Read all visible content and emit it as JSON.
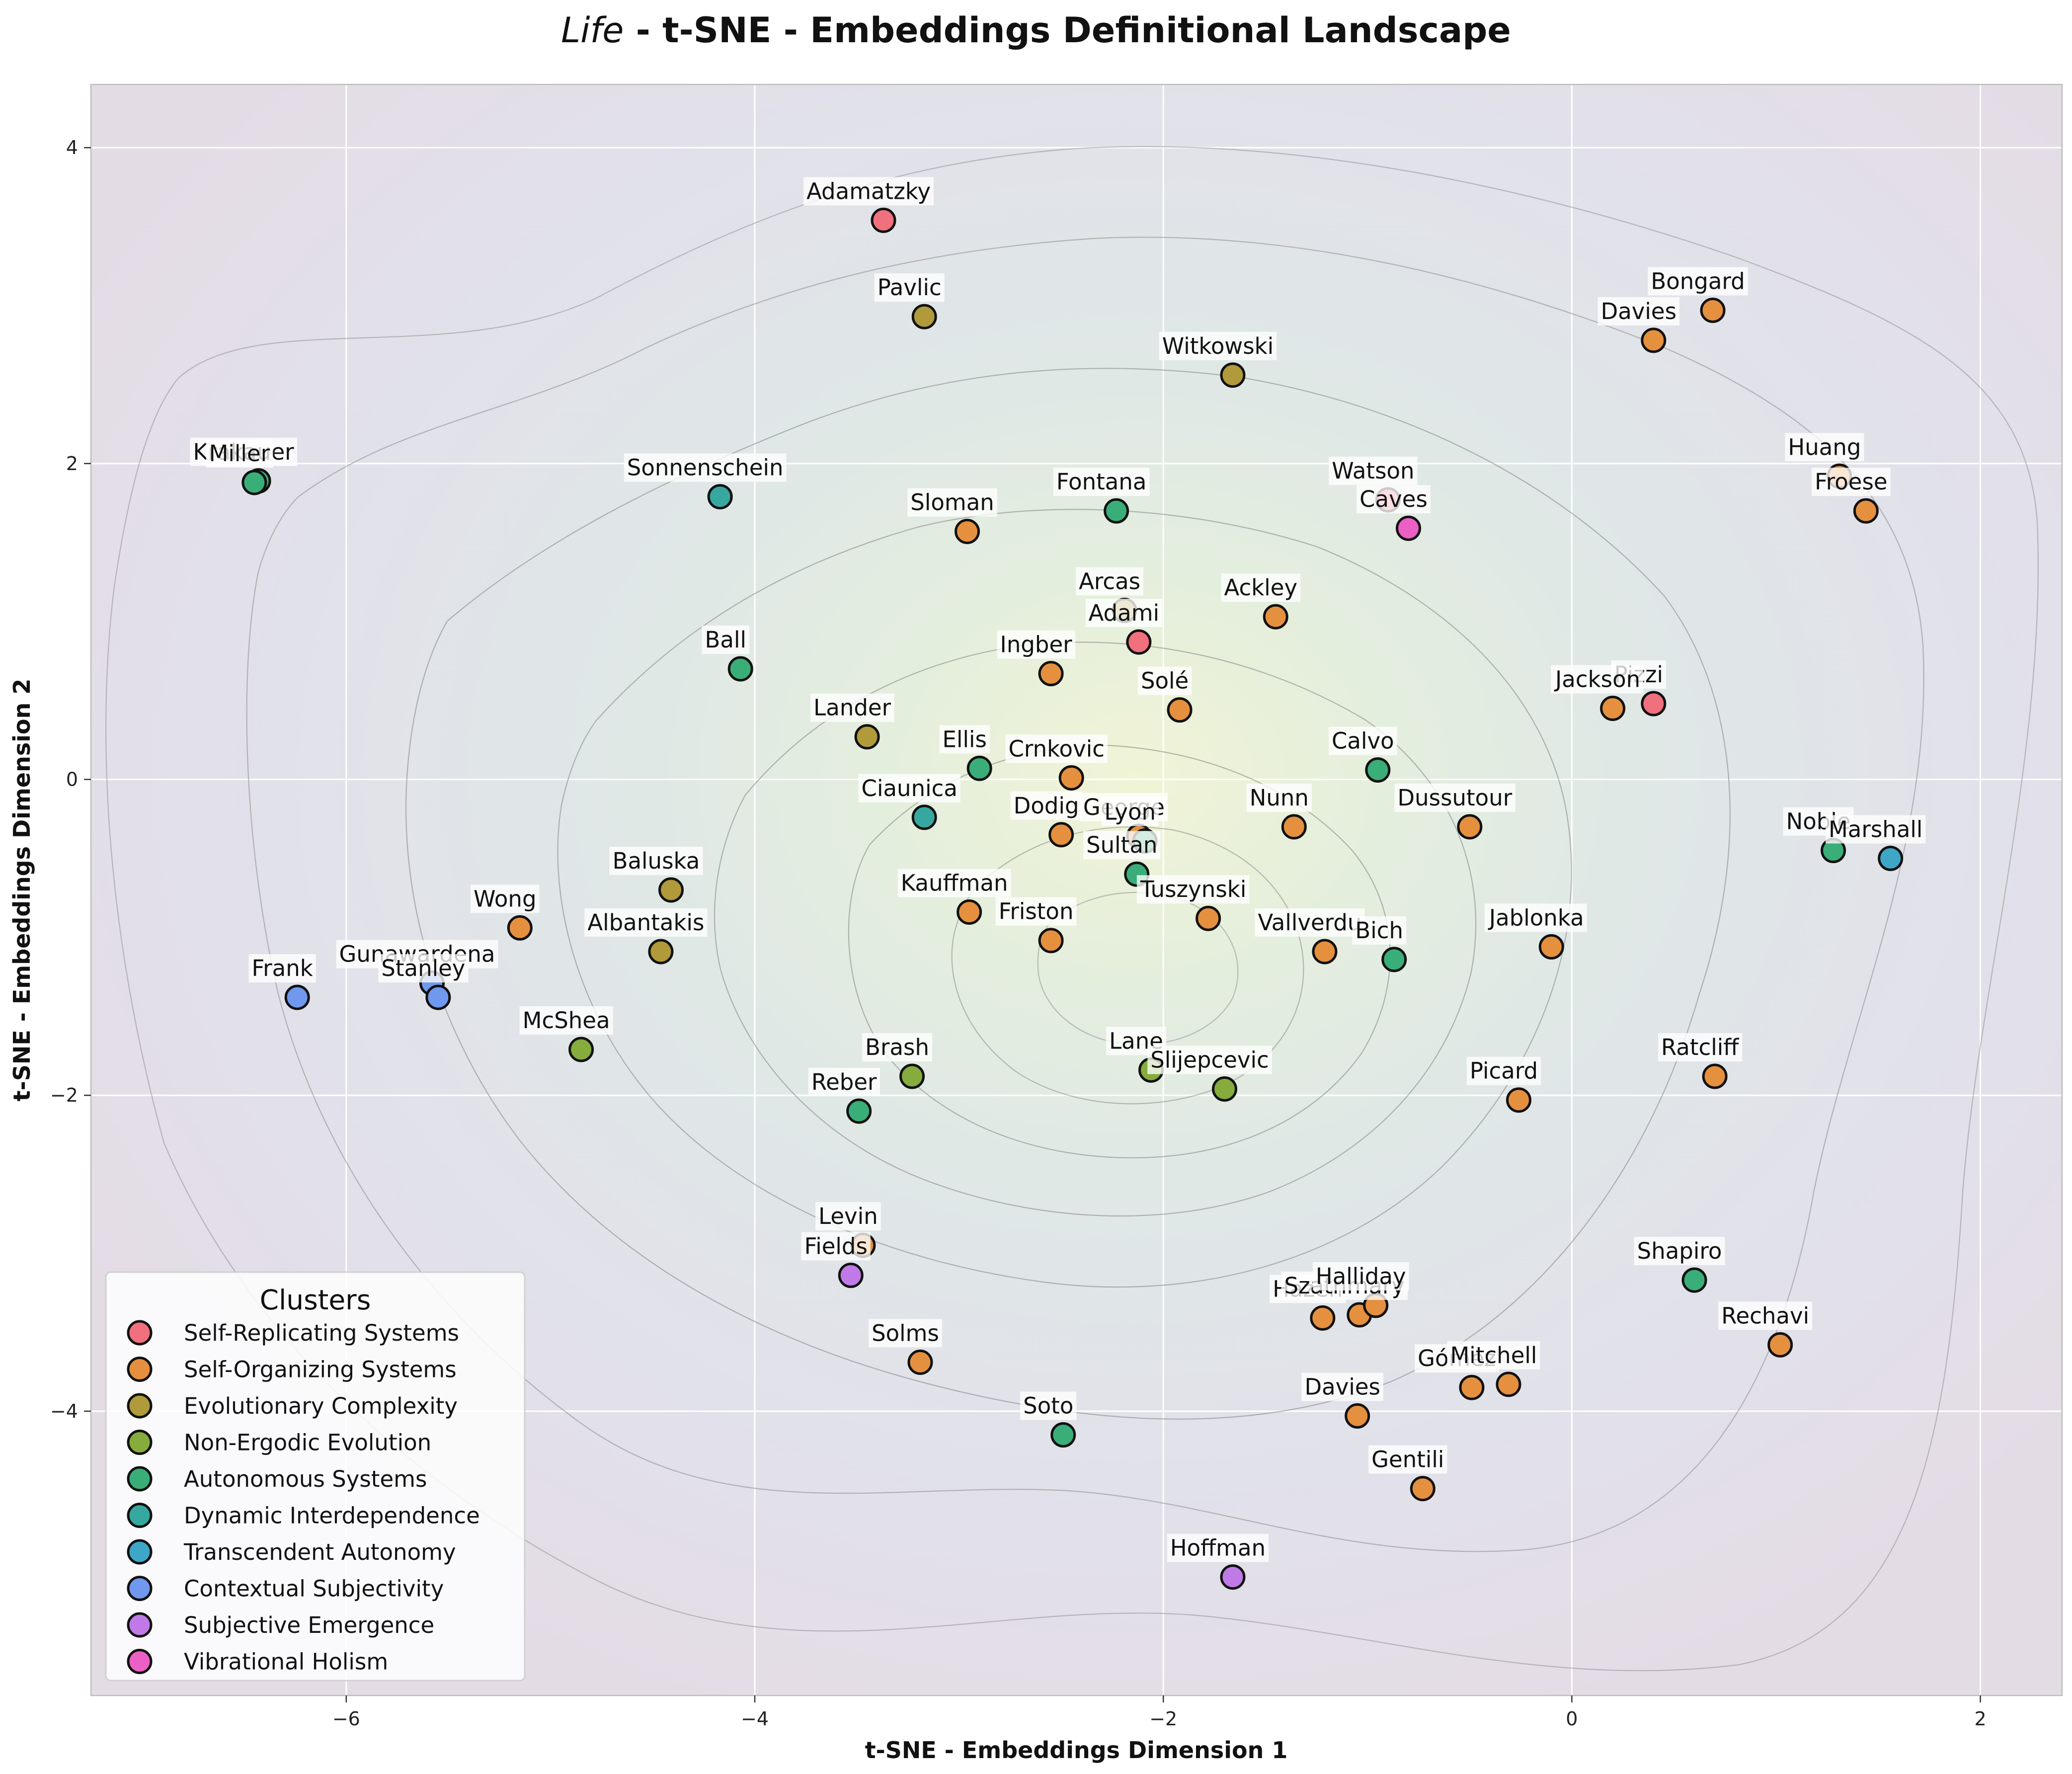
{
  "title": {
    "italic": "Life",
    "rest": " - t-SNE - Embeddings Definitional Landscape"
  },
  "chart_data": {
    "type": "scatter",
    "xlabel": "t-SNE - Embeddings Dimension 1",
    "ylabel": "t-SNE - Embeddings Dimension 2",
    "xlim": [
      -7.25,
      2.4
    ],
    "ylim": [
      -5.8,
      4.4
    ],
    "xticks": [
      -6,
      -4,
      -2,
      0,
      2
    ],
    "yticks": [
      -4,
      -2,
      0,
      2,
      4
    ],
    "grid": true,
    "legend": {
      "title": "Clusters",
      "position": "bottom-left",
      "entries": [
        {
          "name": "Self-Replicating Systems",
          "color": "#f0707e"
        },
        {
          "name": "Self-Organizing Systems",
          "color": "#e5903f"
        },
        {
          "name": "Evolutionary Complexity",
          "color": "#b09a3a"
        },
        {
          "name": "Non-Ergodic Evolution",
          "color": "#85ac3c"
        },
        {
          "name": "Autonomous Systems",
          "color": "#3aae78"
        },
        {
          "name": "Dynamic Interdependence",
          "color": "#37a8a0"
        },
        {
          "name": "Transcendent Autonomy",
          "color": "#3ea6c6"
        },
        {
          "name": "Contextual Subjectivity",
          "color": "#6f98ee"
        },
        {
          "name": "Subjective Emergence",
          "color": "#c07ae8"
        },
        {
          "name": "Vibrational Holism",
          "color": "#ec5fc4"
        }
      ]
    },
    "points": [
      {
        "label": "Adamatzky",
        "x": -3.37,
        "y": 3.54,
        "cluster": 0
      },
      {
        "label": "Adami",
        "x": -2.12,
        "y": 0.87,
        "cluster": 0
      },
      {
        "label": "Pizzi",
        "x": 0.4,
        "y": 0.48,
        "cluster": 0
      },
      {
        "label": "Watson",
        "x": -0.9,
        "y": 1.77,
        "cluster": 0
      },
      {
        "label": "Bongard",
        "x": 0.69,
        "y": 2.97,
        "cluster": 1
      },
      {
        "label": "Davies",
        "x": 0.4,
        "y": 2.78,
        "cluster": 1
      },
      {
        "label": "Huang",
        "x": 1.31,
        "y": 1.92,
        "cluster": 1
      },
      {
        "label": "Froese",
        "x": 1.44,
        "y": 1.7,
        "cluster": 1
      },
      {
        "label": "Sloman",
        "x": -2.96,
        "y": 1.57,
        "cluster": 1
      },
      {
        "label": "Ackley",
        "x": -1.45,
        "y": 1.03,
        "cluster": 1
      },
      {
        "label": "Ingber",
        "x": -2.55,
        "y": 0.67,
        "cluster": 1
      },
      {
        "label": "Solé",
        "x": -1.92,
        "y": 0.44,
        "cluster": 1
      },
      {
        "label": "Jackson",
        "x": 0.2,
        "y": 0.45,
        "cluster": 1
      },
      {
        "label": "Crnkovic",
        "x": -2.45,
        "y": 0.01,
        "cluster": 1
      },
      {
        "label": "Dodig",
        "x": -2.5,
        "y": -0.35,
        "cluster": 1
      },
      {
        "label": "George",
        "x": -2.12,
        "y": -0.36,
        "cluster": 1
      },
      {
        "label": "Nunn",
        "x": -1.36,
        "y": -0.3,
        "cluster": 1
      },
      {
        "label": "Dussutour",
        "x": -0.5,
        "y": -0.3,
        "cluster": 1
      },
      {
        "label": "Wong",
        "x": -5.15,
        "y": -0.94,
        "cluster": 1
      },
      {
        "label": "Kauffman",
        "x": -2.95,
        "y": -0.84,
        "cluster": 1
      },
      {
        "label": "Friston",
        "x": -2.55,
        "y": -1.02,
        "cluster": 1
      },
      {
        "label": "Tuszynski",
        "x": -1.78,
        "y": -0.88,
        "cluster": 1
      },
      {
        "label": "Vallverdu",
        "x": -1.21,
        "y": -1.09,
        "cluster": 1
      },
      {
        "label": "Jablonka",
        "x": -0.1,
        "y": -1.06,
        "cluster": 1
      },
      {
        "label": "Ratcliff",
        "x": 0.7,
        "y": -1.88,
        "cluster": 1
      },
      {
        "label": "Picard",
        "x": -0.26,
        "y": -2.03,
        "cluster": 1
      },
      {
        "label": "Levin",
        "x": -3.47,
        "y": -2.95,
        "cluster": 1
      },
      {
        "label": "Solms",
        "x": -3.19,
        "y": -3.69,
        "cluster": 1
      },
      {
        "label": "Hazen",
        "x": -1.22,
        "y": -3.41,
        "cluster": 1
      },
      {
        "label": "Szathmary",
        "x": -1.04,
        "y": -3.39,
        "cluster": 1
      },
      {
        "label": "Halliday",
        "x": -0.96,
        "y": -3.33,
        "cluster": 1
      },
      {
        "label": "Gómez",
        "x": -0.49,
        "y": -3.85,
        "cluster": 1
      },
      {
        "label": "Mitchell",
        "x": -0.31,
        "y": -3.83,
        "cluster": 1
      },
      {
        "label": "Rechavi",
        "x": 1.02,
        "y": -3.58,
        "cluster": 1
      },
      {
        "label": "Davies",
        "x": -1.05,
        "y": -4.03,
        "cluster": 1
      },
      {
        "label": "Gentili",
        "x": -0.73,
        "y": -4.49,
        "cluster": 1
      },
      {
        "label": "Pavlic",
        "x": -3.17,
        "y": 2.93,
        "cluster": 2
      },
      {
        "label": "Witkowski",
        "x": -1.66,
        "y": 2.56,
        "cluster": 2
      },
      {
        "label": "Arcas",
        "x": -2.19,
        "y": 1.07,
        "cluster": 2
      },
      {
        "label": "Lander",
        "x": -3.45,
        "y": 0.27,
        "cluster": 2
      },
      {
        "label": "Baluska",
        "x": -4.41,
        "y": -0.7,
        "cluster": 2
      },
      {
        "label": "Albantakis",
        "x": -4.46,
        "y": -1.09,
        "cluster": 2
      },
      {
        "label": "McShea",
        "x": -4.85,
        "y": -1.71,
        "cluster": 3
      },
      {
        "label": "Brash",
        "x": -3.23,
        "y": -1.88,
        "cluster": 3
      },
      {
        "label": "Lane",
        "x": -2.06,
        "y": -1.84,
        "cluster": 3
      },
      {
        "label": "Slijepcevic",
        "x": -1.7,
        "y": -1.96,
        "cluster": 3
      },
      {
        "label": "Krakauer",
        "x": -6.43,
        "y": 1.89,
        "cluster": 4
      },
      {
        "label": "Miller",
        "x": -6.45,
        "y": 1.88,
        "cluster": 4
      },
      {
        "label": "Fontana",
        "x": -2.23,
        "y": 1.7,
        "cluster": 4
      },
      {
        "label": "Ball",
        "x": -4.07,
        "y": 0.7,
        "cluster": 4
      },
      {
        "label": "Ellis",
        "x": -2.9,
        "y": 0.07,
        "cluster": 4
      },
      {
        "label": "Lyon",
        "x": -2.09,
        "y": -0.39,
        "cluster": 4
      },
      {
        "label": "Sultan",
        "x": -2.13,
        "y": -0.6,
        "cluster": 4
      },
      {
        "label": "Calvo",
        "x": -0.95,
        "y": 0.06,
        "cluster": 4
      },
      {
        "label": "Bich",
        "x": -0.87,
        "y": -1.14,
        "cluster": 4
      },
      {
        "label": "Reber",
        "x": -3.49,
        "y": -2.1,
        "cluster": 4
      },
      {
        "label": "Soto",
        "x": -2.49,
        "y": -4.15,
        "cluster": 4
      },
      {
        "label": "Shapiro",
        "x": 0.6,
        "y": -3.17,
        "cluster": 4
      },
      {
        "label": "Noble",
        "x": 1.28,
        "y": -0.45,
        "cluster": 4
      },
      {
        "label": "Sonnenschein",
        "x": -4.17,
        "y": 1.79,
        "cluster": 5
      },
      {
        "label": "Ciaunica",
        "x": -3.17,
        "y": -0.24,
        "cluster": 5
      },
      {
        "label": "Marshall",
        "x": 1.56,
        "y": -0.5,
        "cluster": 6
      },
      {
        "label": "Gunawardena",
        "x": -5.58,
        "y": -1.29,
        "cluster": 7
      },
      {
        "label": "Frank",
        "x": -6.24,
        "y": -1.38,
        "cluster": 7
      },
      {
        "label": "Stanley",
        "x": -5.55,
        "y": -1.38,
        "cluster": 7
      },
      {
        "label": "Fields",
        "x": -3.53,
        "y": -3.14,
        "cluster": 8
      },
      {
        "label": "Hoffman",
        "x": -1.66,
        "y": -5.05,
        "cluster": 8
      },
      {
        "label": "Caves",
        "x": -0.8,
        "y": 1.59,
        "cluster": 9
      }
    ]
  }
}
